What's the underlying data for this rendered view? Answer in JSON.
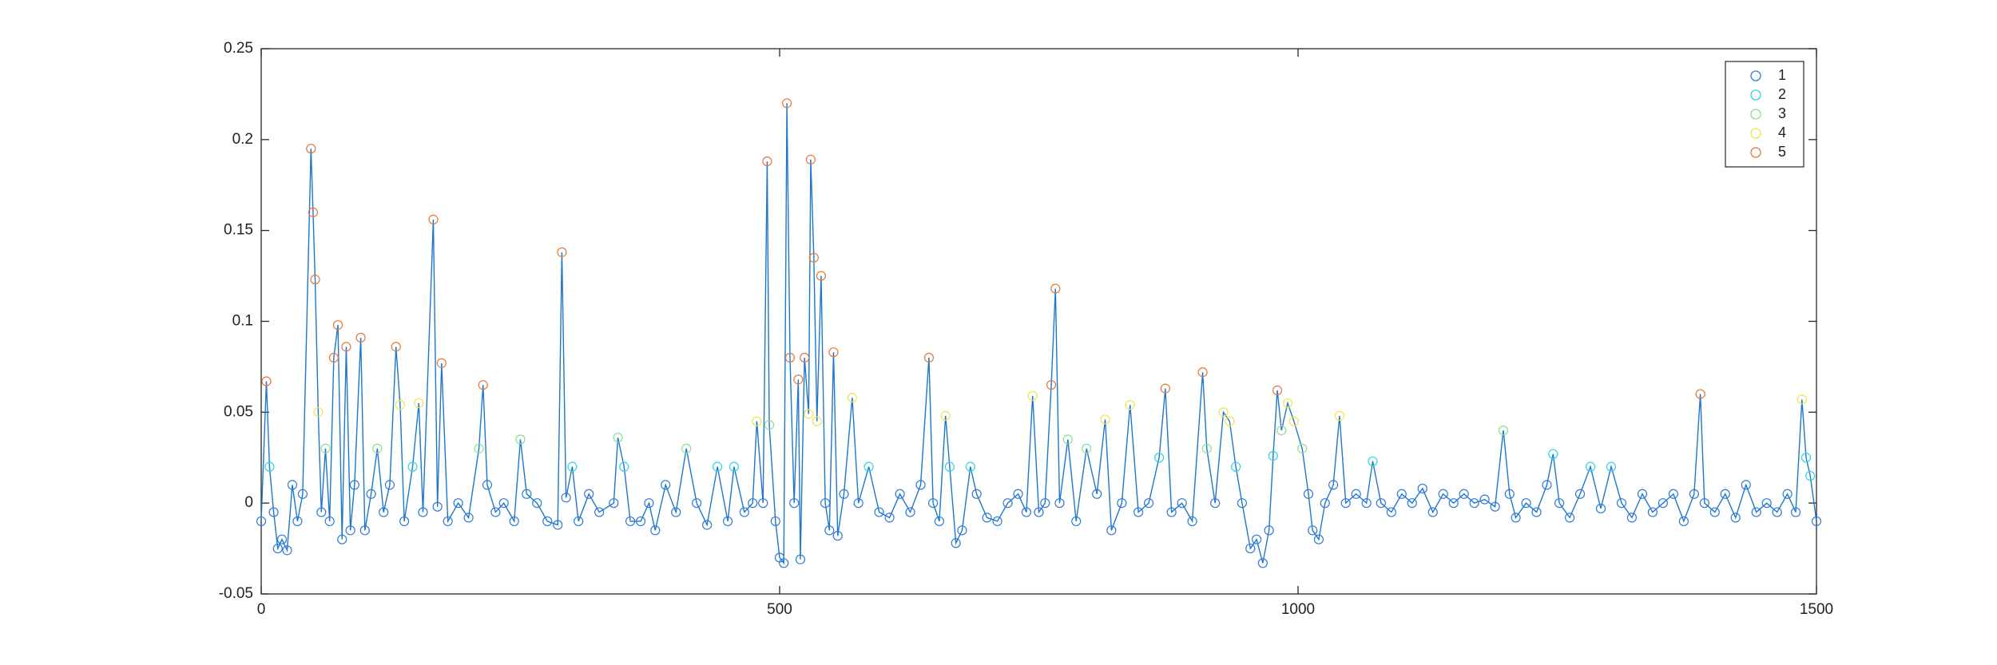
{
  "chart_data": {
    "type": "line-scatter",
    "x": [
      0,
      5,
      8,
      12,
      16,
      20,
      25,
      30,
      35,
      40,
      48,
      50,
      52,
      55,
      58,
      62,
      66,
      70,
      74,
      78,
      82,
      86,
      90,
      96,
      100,
      106,
      112,
      118,
      124,
      130,
      134,
      138,
      146,
      152,
      156,
      166,
      170,
      174,
      180,
      190,
      200,
      210,
      214,
      218,
      226,
      234,
      244,
      250,
      256,
      266,
      276,
      286,
      290,
      294,
      300,
      306,
      316,
      326,
      340,
      344,
      350,
      356,
      366,
      374,
      380,
      390,
      400,
      410,
      420,
      430,
      440,
      450,
      456,
      466,
      474,
      478,
      484,
      488,
      490,
      496,
      500,
      504,
      507,
      510,
      514,
      518,
      520,
      524,
      528,
      530,
      533,
      536,
      540,
      544,
      548,
      552,
      556,
      562,
      570,
      576,
      586,
      596,
      606,
      616,
      626,
      636,
      644,
      648,
      654,
      660,
      664,
      670,
      676,
      684,
      690,
      700,
      710,
      720,
      730,
      738,
      744,
      750,
      756,
      762,
      766,
      770,
      778,
      786,
      796,
      806,
      814,
      820,
      830,
      838,
      846,
      856,
      866,
      872,
      878,
      888,
      898,
      908,
      912,
      920,
      928,
      934,
      940,
      946,
      954,
      960,
      966,
      972,
      976,
      980,
      984,
      990,
      996,
      1004,
      1010,
      1014,
      1020,
      1026,
      1034,
      1040,
      1046,
      1056,
      1066,
      1072,
      1080,
      1090,
      1100,
      1110,
      1120,
      1130,
      1140,
      1150,
      1160,
      1170,
      1180,
      1190,
      1198,
      1204,
      1210,
      1220,
      1230,
      1240,
      1246,
      1252,
      1262,
      1272,
      1282,
      1292,
      1302,
      1312,
      1322,
      1332,
      1342,
      1352,
      1362,
      1372,
      1382,
      1388,
      1392,
      1402,
      1412,
      1422,
      1432,
      1442,
      1452,
      1462,
      1472,
      1480,
      1486,
      1490,
      1494,
      1500
    ],
    "values": [
      -0.01,
      0.067,
      0.02,
      -0.005,
      -0.025,
      -0.02,
      -0.026,
      0.01,
      -0.01,
      0.005,
      0.195,
      0.16,
      0.123,
      0.05,
      -0.005,
      0.03,
      -0.01,
      0.08,
      0.098,
      -0.02,
      0.086,
      -0.015,
      0.01,
      0.091,
      -0.015,
      0.005,
      0.03,
      -0.005,
      0.01,
      0.086,
      0.054,
      -0.01,
      0.02,
      0.055,
      -0.005,
      0.156,
      -0.002,
      0.077,
      -0.01,
      0,
      -0.008,
      0.03,
      0.065,
      0.01,
      -0.005,
      0,
      -0.01,
      0.035,
      0.005,
      0,
      -0.01,
      -0.012,
      0.138,
      0.003,
      0.02,
      -0.01,
      0.005,
      -0.005,
      0,
      0.036,
      0.02,
      -0.01,
      -0.01,
      0,
      -0.015,
      0.01,
      -0.005,
      0.03,
      0,
      -0.012,
      0.02,
      -0.01,
      0.02,
      -0.005,
      0,
      0.045,
      0,
      0.188,
      0.043,
      -0.01,
      -0.03,
      -0.033,
      0.22,
      0.08,
      0,
      0.068,
      -0.031,
      0.08,
      0.049,
      0.189,
      0.135,
      0.045,
      0.125,
      0,
      -0.015,
      0.083,
      -0.018,
      0.005,
      0.058,
      0,
      0.02,
      -0.005,
      -0.008,
      0.005,
      -0.005,
      0.01,
      0.08,
      0,
      -0.01,
      0.048,
      0.02,
      -0.022,
      -0.015,
      0.02,
      0.005,
      -0.008,
      -0.01,
      0,
      0.005,
      -0.005,
      0.059,
      -0.005,
      0,
      0.065,
      0.118,
      0,
      0.035,
      -0.01,
      0.03,
      0.005,
      0.046,
      -0.015,
      0,
      0.054,
      -0.005,
      0,
      0.025,
      0.063,
      -0.005,
      0,
      -0.01,
      0.072,
      0.03,
      0,
      0.05,
      0.045,
      0.02,
      0,
      -0.025,
      -0.02,
      -0.033,
      -0.015,
      0.026,
      0.062,
      0.04,
      0.055,
      0.045,
      0.03,
      0.005,
      -0.015,
      -0.02,
      0,
      0.01,
      0.048,
      0,
      0.005,
      0,
      0.023,
      0,
      -0.005,
      0.005,
      0,
      0.008,
      -0.005,
      0.005,
      0,
      0.005,
      0,
      0.002,
      -0.002,
      0.04,
      0.005,
      -0.008,
      0,
      -0.005,
      0.01,
      0.027,
      0,
      -0.008,
      0.005,
      0.02,
      -0.003,
      0.02,
      0,
      -0.008,
      0.005,
      -0.005,
      0,
      0.005,
      -0.01,
      0.005,
      0.06,
      0,
      -0.005,
      0.005,
      -0.008,
      0.01,
      -0.005,
      0,
      -0.005,
      0.005,
      -0.005,
      0.057,
      0.025,
      0.015,
      -0.01
    ],
    "cluster": [
      0,
      4,
      1,
      0,
      0,
      0,
      0,
      0,
      0,
      0,
      4,
      4,
      4,
      3,
      0,
      2,
      0,
      4,
      4,
      0,
      4,
      0,
      0,
      4,
      0,
      0,
      2,
      0,
      0,
      4,
      3,
      0,
      1,
      3,
      0,
      4,
      0,
      4,
      0,
      0,
      0,
      2,
      4,
      0,
      0,
      0,
      0,
      2,
      0,
      0,
      0,
      0,
      4,
      0,
      1,
      0,
      0,
      0,
      0,
      2,
      1,
      0,
      0,
      0,
      0,
      0,
      0,
      2,
      0,
      0,
      1,
      0,
      1,
      0,
      0,
      3,
      0,
      4,
      2,
      0,
      0,
      0,
      4,
      4,
      0,
      4,
      0,
      4,
      3,
      4,
      4,
      3,
      4,
      0,
      0,
      4,
      0,
      0,
      3,
      0,
      1,
      0,
      0,
      0,
      0,
      0,
      4,
      0,
      0,
      3,
      1,
      0,
      0,
      1,
      0,
      0,
      0,
      0,
      0,
      0,
      3,
      0,
      0,
      4,
      4,
      0,
      2,
      0,
      2,
      0,
      3,
      0,
      0,
      3,
      0,
      0,
      1,
      4,
      0,
      0,
      0,
      4,
      2,
      0,
      3,
      3,
      1,
      0,
      0,
      0,
      0,
      0,
      1,
      4,
      2,
      3,
      3,
      2,
      0,
      0,
      0,
      0,
      0,
      3,
      0,
      0,
      0,
      1,
      0,
      0,
      0,
      0,
      0,
      0,
      0,
      0,
      0,
      0,
      0,
      0,
      2,
      0,
      0,
      0,
      0,
      0,
      1,
      0,
      0,
      0,
      1,
      0,
      1,
      0,
      0,
      0,
      0,
      0,
      0,
      0,
      0,
      4,
      0,
      0,
      0,
      0,
      0,
      0,
      0,
      0,
      0,
      0,
      3,
      1,
      1,
      0
    ],
    "line_color": "#1f77c9",
    "series": [
      {
        "name": "1",
        "color": "#2f7ad8"
      },
      {
        "name": "2",
        "color": "#2cd3e3"
      },
      {
        "name": "3",
        "color": "#86e08e"
      },
      {
        "name": "4",
        "color": "#f2e24a"
      },
      {
        "name": "5",
        "color": "#e5773a"
      }
    ],
    "xlim": [
      0,
      1500
    ],
    "xticks": [
      0,
      500,
      1000,
      1500
    ],
    "ylim": [
      -0.05,
      0.25
    ],
    "yticks": [
      -0.05,
      0,
      0.05,
      0.1,
      0.15,
      0.2,
      0.25
    ],
    "legend": "upper right"
  }
}
